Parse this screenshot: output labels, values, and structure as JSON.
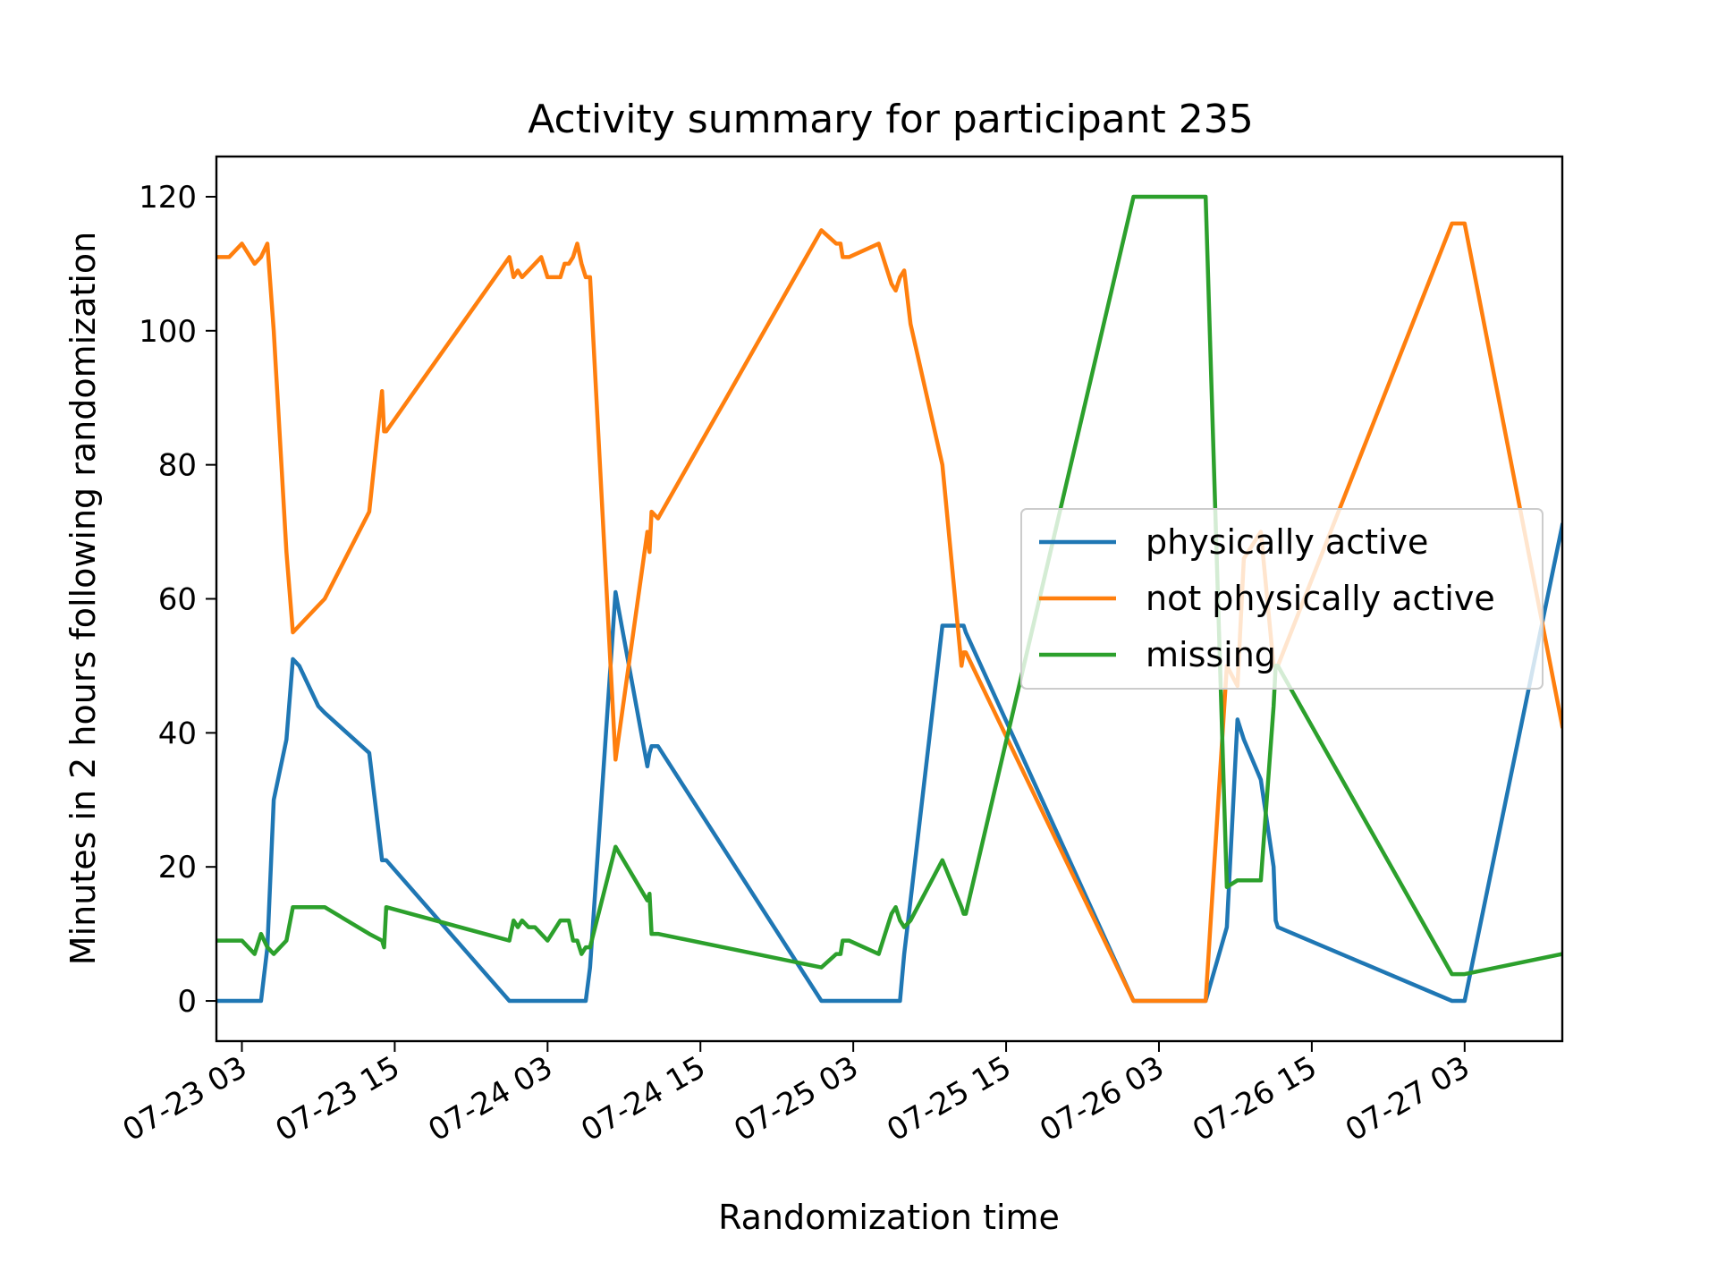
{
  "chart_data": {
    "type": "line",
    "title": "Activity summary for participant 235",
    "xlabel": "Randomization time",
    "ylabel": "Minutes in 2 hours following randomization",
    "xlim": [
      "2018-07-23 01:00",
      "2018-07-27 10:40"
    ],
    "ylim": [
      -6,
      126
    ],
    "x_ticks": [
      {
        "x": "2018-07-23 03:00",
        "label": "07-23 03"
      },
      {
        "x": "2018-07-23 15:00",
        "label": "07-23 15"
      },
      {
        "x": "2018-07-24 03:00",
        "label": "07-24 03"
      },
      {
        "x": "2018-07-24 15:00",
        "label": "07-24 15"
      },
      {
        "x": "2018-07-25 03:00",
        "label": "07-25 03"
      },
      {
        "x": "2018-07-25 15:00",
        "label": "07-25 15"
      },
      {
        "x": "2018-07-26 03:00",
        "label": "07-26 03"
      },
      {
        "x": "2018-07-26 15:00",
        "label": "07-26 15"
      },
      {
        "x": "2018-07-27 03:00",
        "label": "07-27 03"
      }
    ],
    "y_ticks": [
      0,
      20,
      40,
      60,
      80,
      100,
      120
    ],
    "grid": false,
    "legend": "center-right",
    "x": [
      "2018-07-23 01:00",
      "2018-07-23 02:00",
      "2018-07-23 03:00",
      "2018-07-23 04:00",
      "2018-07-23 04:30",
      "2018-07-23 05:00",
      "2018-07-23 05:30",
      "2018-07-23 06:30",
      "2018-07-23 07:00",
      "2018-07-23 07:30",
      "2018-07-23 08:00",
      "2018-07-23 08:30",
      "2018-07-23 09:00",
      "2018-07-23 09:30",
      "2018-07-23 13:00",
      "2018-07-23 14:00",
      "2018-07-23 14:10",
      "2018-07-23 14:20",
      "2018-07-24 00:00",
      "2018-07-24 00:20",
      "2018-07-24 00:40",
      "2018-07-24 01:00",
      "2018-07-24 01:30",
      "2018-07-24 02:00",
      "2018-07-24 02:30",
      "2018-07-24 03:00",
      "2018-07-24 04:00",
      "2018-07-24 04:20",
      "2018-07-24 04:40",
      "2018-07-24 05:00",
      "2018-07-24 05:20",
      "2018-07-24 05:40",
      "2018-07-24 06:00",
      "2018-07-24 06:20",
      "2018-07-24 08:20",
      "2018-07-24 10:50",
      "2018-07-24 11:00",
      "2018-07-24 11:10",
      "2018-07-24 11:40",
      "2018-07-25 00:30",
      "2018-07-25 01:40",
      "2018-07-25 02:00",
      "2018-07-25 02:10",
      "2018-07-25 02:40",
      "2018-07-25 05:00",
      "2018-07-25 06:00",
      "2018-07-25 06:20",
      "2018-07-25 06:40",
      "2018-07-25 07:00",
      "2018-07-25 07:30",
      "2018-07-25 10:00",
      "2018-07-25 11:30",
      "2018-07-25 11:40",
      "2018-07-25 11:50",
      "2018-07-26 01:00",
      "2018-07-26 03:00",
      "2018-07-26 06:40",
      "2018-07-26 08:20",
      "2018-07-26 09:10",
      "2018-07-26 09:40",
      "2018-07-26 11:00",
      "2018-07-26 12:00",
      "2018-07-26 12:10",
      "2018-07-26 12:20",
      "2018-07-27 02:00",
      "2018-07-27 03:00",
      "2018-07-27 10:40"
    ],
    "series": [
      {
        "name": "physically active",
        "color": "#1f77b4",
        "values": [
          0,
          0,
          0,
          0,
          0,
          8,
          30,
          39,
          51,
          50,
          48,
          46,
          44,
          43,
          37,
          21,
          21,
          21,
          0,
          0,
          0,
          0,
          0,
          0,
          0,
          0,
          0,
          0,
          0,
          0,
          0,
          0,
          0,
          5,
          61,
          35,
          37,
          38,
          38,
          0,
          0,
          0,
          0,
          0,
          0,
          0,
          0,
          0,
          7,
          15,
          56,
          56,
          56,
          55,
          0,
          0,
          0,
          11,
          42,
          39,
          33,
          20,
          12,
          11,
          0,
          0,
          71
        ]
      },
      {
        "name": "not physically active",
        "color": "#ff7f0e",
        "values": [
          111,
          111,
          113,
          110,
          111,
          113,
          100,
          67,
          55,
          56,
          57,
          58,
          59,
          60,
          73,
          91,
          85,
          85,
          111,
          108,
          109,
          108,
          109,
          110,
          111,
          108,
          108,
          110,
          110,
          111,
          113,
          110,
          108,
          108,
          36,
          70,
          67,
          73,
          72,
          115,
          113,
          113,
          111,
          111,
          113,
          107,
          106,
          108,
          109,
          101,
          80,
          50,
          52,
          52,
          0,
          0,
          0,
          50,
          47,
          66,
          70,
          50,
          50,
          50,
          116,
          116,
          41
        ]
      },
      {
        "name": "missing",
        "color": "#2ca02c",
        "values": [
          9,
          9,
          9,
          7,
          10,
          8,
          7,
          9,
          14,
          14,
          14,
          14,
          14,
          14,
          10,
          9,
          8,
          14,
          9,
          12,
          11,
          12,
          11,
          11,
          10,
          9,
          12,
          12,
          12,
          9,
          9,
          7,
          8,
          8,
          23,
          15,
          16,
          10,
          10,
          5,
          7,
          7,
          9,
          9,
          7,
          13,
          14,
          12,
          11,
          12,
          21,
          14,
          13,
          13,
          120,
          120,
          120,
          17,
          18,
          18,
          18,
          44,
          50,
          50,
          4,
          4,
          7
        ]
      }
    ]
  }
}
